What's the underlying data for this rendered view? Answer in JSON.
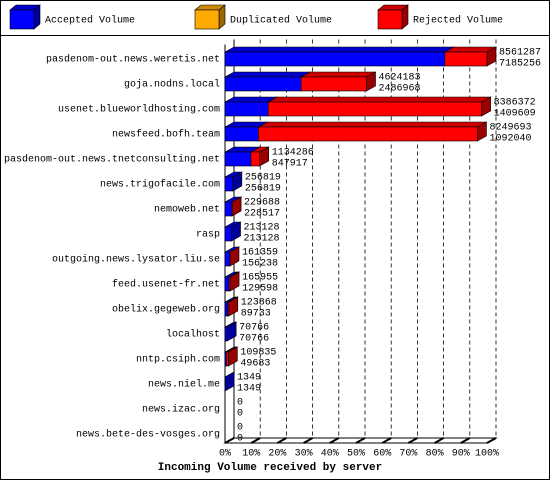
{
  "chart_data": {
    "type": "bar3d",
    "orientation": "horizontal",
    "stacked": true,
    "x_label": "Incoming Volume received by server",
    "categories": [
      "pasdenom-out.news.weretis.net",
      "goja.nodns.local",
      "usenet.blueworldhosting.com",
      "newsfeed.bofh.team",
      "pasdenom-out.news.tnetconsulting.net",
      "news.trigofacile.com",
      "nemoweb.net",
      "rasp",
      "outgoing.news.lysator.liu.se",
      "feed.usenet-fr.net",
      "obelix.gegeweb.org",
      "localhost",
      "nntp.csiph.com",
      "news.niel.me",
      "news.izac.org",
      "news.bete-des-vosges.org"
    ],
    "totals": [
      8561287,
      4624183,
      8386372,
      8249693,
      1134286,
      256819,
      229688,
      213128,
      161359,
      165955,
      123868,
      70766,
      109835,
      1349,
      0,
      0
    ],
    "series": [
      {
        "name": "Accepted Volume",
        "color": "#0000ff",
        "values": [
          7185256,
          2486968,
          1409609,
          1092040,
          847917,
          256819,
          228517,
          213128,
          156238,
          129598,
          89733,
          70766,
          49683,
          1349,
          0,
          0
        ]
      },
      {
        "name": "Duplicated Volume",
        "color": "#ffaa00",
        "values": [
          0,
          0,
          0,
          0,
          0,
          0,
          0,
          0,
          0,
          0,
          0,
          0,
          0,
          0,
          0,
          0
        ]
      },
      {
        "name": "Rejected Volume",
        "color": "#ff0000",
        "values": [
          1376031,
          2137215,
          6976763,
          7157653,
          286369,
          0,
          1171,
          0,
          5121,
          36357,
          34135,
          0,
          60152,
          0,
          0,
          0
        ]
      }
    ],
    "xlim": [
      0,
      8561287
    ],
    "xticks": [
      {
        "value": 0,
        "label": "0%"
      },
      {
        "value": 856128.7,
        "label": "10%"
      },
      {
        "value": 1712257.4,
        "label": "20%"
      },
      {
        "value": 2568386.1,
        "label": "30%"
      },
      {
        "value": 3424514.8,
        "label": "40%"
      },
      {
        "value": 4280643.5,
        "label": "50%"
      },
      {
        "value": 5136772.2,
        "label": "60%"
      },
      {
        "value": 5992900.9,
        "label": "70%"
      },
      {
        "value": 6849029.6,
        "label": "80%"
      },
      {
        "value": 7705158.3,
        "label": "90%"
      },
      {
        "value": 8561287,
        "label": "100%"
      }
    ],
    "grid": true
  }
}
